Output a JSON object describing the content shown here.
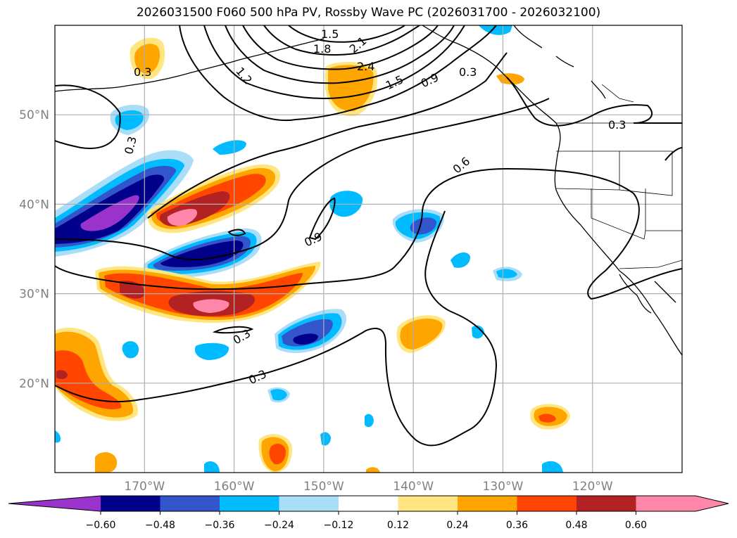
{
  "title": "2026031500 F060 500 hPa PV, Rossby Wave PC (2026031700 - 2026032100)",
  "map": {
    "lon_range": [
      -180,
      -110
    ],
    "lat_range": [
      10,
      60
    ],
    "lat_ticks": [
      {
        "value": 20,
        "label": "20°N"
      },
      {
        "value": 30,
        "label": "30°N"
      },
      {
        "value": 40,
        "label": "40°N"
      },
      {
        "value": 50,
        "label": "50°N"
      }
    ],
    "lon_ticks": [
      {
        "value": -170,
        "label": "170°W"
      },
      {
        "value": -160,
        "label": "160°W"
      },
      {
        "value": -150,
        "label": "150°W"
      },
      {
        "value": -140,
        "label": "140°W"
      },
      {
        "value": -130,
        "label": "130°W"
      },
      {
        "value": -120,
        "label": "120°W"
      }
    ],
    "contour_labels": [
      "1.5",
      "1.8",
      "2.1",
      "2.4",
      "1.5",
      "0.9",
      "1.2",
      "0.3",
      "0.3",
      "0.3",
      "0.6",
      "0.9",
      "0.3",
      "0.3",
      "0.3"
    ]
  },
  "colorbar": {
    "ticks": [
      "−0.60",
      "−0.48",
      "−0.36",
      "−0.24",
      "−0.12",
      "0.12",
      "0.24",
      "0.36",
      "0.48",
      "0.60"
    ],
    "colors": [
      "#9933cc",
      "#00008b",
      "#3355cc",
      "#00bbff",
      "#aaddf8",
      "#ffffff",
      "#ffe680",
      "#ffa500",
      "#ff4500",
      "#b22222",
      "#ff88aa",
      "#ff88aa"
    ]
  },
  "colors": {
    "purple": "#9933cc",
    "navy": "#00008b",
    "royal": "#3355cc",
    "sky": "#00bbff",
    "light": "#aaddf8",
    "yellow": "#ffe680",
    "orange": "#ffa500",
    "redorange": "#ff4500",
    "firebrick": "#b22222",
    "pink": "#ff88aa",
    "grid": "#b0b0b0"
  }
}
